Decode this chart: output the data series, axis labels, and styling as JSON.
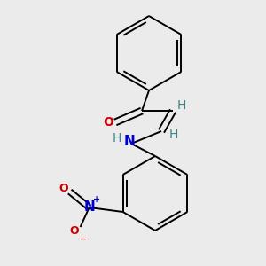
{
  "background_color": "#ebebeb",
  "line_color": "#000000",
  "bond_width": 1.4,
  "atom_colors": {
    "O": "#cc0000",
    "N": "#0000cc",
    "H": "#408080"
  },
  "font_size_main": 10,
  "font_size_small": 8
}
